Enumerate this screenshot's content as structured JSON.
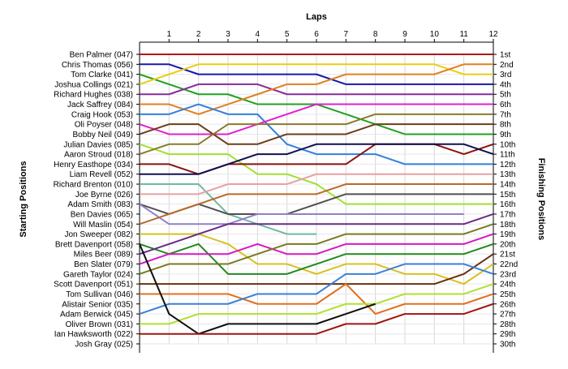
{
  "chart_data": {
    "type": "line",
    "title": "",
    "x_axis_title": "Laps",
    "left_axis_title": "Starting Positions",
    "right_axis_title": "Finishing Positions",
    "x": [
      0,
      1,
      2,
      3,
      4,
      5,
      6,
      7,
      8,
      9,
      10,
      11,
      12
    ],
    "x_tick_labels": [
      "1",
      "2",
      "3",
      "4",
      "5",
      "6",
      "7",
      "8",
      "9",
      "10",
      "11",
      "12"
    ],
    "positions": 30,
    "grid": true,
    "finishing_labels": [
      "1st",
      "2nd",
      "3rd",
      "4th",
      "5th",
      "6th",
      "7th",
      "8th",
      "9th",
      "10th",
      "11th",
      "12th",
      "13th",
      "14th",
      "15th",
      "16th",
      "17th",
      "18th",
      "19th",
      "20th",
      "21st",
      "22nd",
      "23rd",
      "24th",
      "25th",
      "26th",
      "27th",
      "28th",
      "29th",
      "30th"
    ],
    "series": [
      {
        "name": "Ben Palmer (047)",
        "color": "#b01818",
        "positions": [
          1,
          1,
          1,
          1,
          1,
          1,
          1,
          1,
          1,
          1,
          1,
          1,
          1
        ]
      },
      {
        "name": "Chris Thomas (056)",
        "color": "#1818b0",
        "positions": [
          2,
          2,
          3,
          3,
          3,
          3,
          3,
          4,
          4,
          4,
          4,
          4,
          4
        ]
      },
      {
        "name": "Tom Clarke (041)",
        "color": "#22a022",
        "positions": [
          3,
          4,
          5,
          5,
          6,
          6,
          6,
          7,
          8,
          9,
          9,
          9,
          9
        ]
      },
      {
        "name": "Joshua Collings (021)",
        "color": "#e8d010",
        "positions": [
          4,
          3,
          2,
          2,
          2,
          2,
          2,
          2,
          2,
          2,
          2,
          3,
          3
        ]
      },
      {
        "name": "Richard Hughes (038)",
        "color": "#8a2a9a",
        "positions": [
          5,
          5,
          4,
          4,
          4,
          5,
          5,
          5,
          5,
          5,
          5,
          5,
          5
        ]
      },
      {
        "name": "Jack Saffrey (084)",
        "color": "#e08020",
        "positions": [
          6,
          6,
          7,
          6,
          5,
          4,
          4,
          3,
          3,
          3,
          3,
          2,
          2
        ]
      },
      {
        "name": "Craig Hook (053)",
        "color": "#3080e0",
        "positions": [
          7,
          7,
          6,
          7,
          7,
          10,
          11,
          11,
          11,
          12,
          12,
          12,
          12
        ]
      },
      {
        "name": "Oli Poyser (048)",
        "color": "#e020d0",
        "positions": [
          8,
          9,
          9,
          9,
          8,
          7,
          6,
          6,
          6,
          6,
          6,
          6,
          6
        ]
      },
      {
        "name": "Bobby Neil (049)",
        "color": "#6b3d1a",
        "positions": [
          9,
          8,
          8,
          10,
          10,
          9,
          9,
          9,
          8,
          8,
          8,
          8,
          8
        ]
      },
      {
        "name": "Julian Davies (085)",
        "color": "#a0e030",
        "positions": [
          10,
          11,
          11,
          11,
          13,
          13,
          14,
          16,
          16,
          16,
          16,
          16,
          16
        ]
      },
      {
        "name": "Aaron Stroud (018)",
        "color": "#8a7a2a",
        "positions": [
          11,
          10,
          10,
          8,
          8,
          8,
          8,
          8,
          7,
          7,
          7,
          7,
          7
        ]
      },
      {
        "name": "Henry Easthope (034)",
        "color": "#8c1010",
        "positions": [
          12,
          12,
          13,
          12,
          12,
          12,
          12,
          12,
          10,
          10,
          10,
          11,
          10
        ]
      },
      {
        "name": "Liam Revell (052)",
        "color": "#101050",
        "positions": [
          13,
          13,
          13,
          12,
          11,
          11,
          10,
          10,
          10,
          10,
          10,
          10,
          11
        ]
      },
      {
        "name": "Richard Brenton (010)",
        "color": "#6fb8a0",
        "positions": [
          14,
          14,
          14,
          17,
          18,
          19,
          19
        ]
      },
      {
        "name": "Joe Byrne (026)",
        "color": "#e8a0a0",
        "positions": [
          15,
          15,
          15,
          14,
          14,
          14,
          13,
          13,
          13,
          13,
          13,
          13,
          13
        ]
      },
      {
        "name": "Adam Smith (083)",
        "color": "#505050",
        "positions": [
          16,
          17,
          16,
          17,
          17,
          17,
          16,
          15,
          15,
          15,
          15,
          15,
          15
        ]
      },
      {
        "name": "Ben Davies (065)",
        "color": "#9080c8",
        "positions": [
          16,
          18,
          18,
          18,
          17,
          17,
          17,
          17,
          17,
          17,
          17,
          17
        ]
      },
      {
        "name": "Will Maslin (054)",
        "color": "#b86a2a",
        "positions": [
          18,
          17,
          16,
          15,
          15,
          15,
          15,
          14,
          14,
          14,
          14,
          14,
          14
        ]
      },
      {
        "name": "Jon Sweeper (082)",
        "color": "#d8c020",
        "positions": [
          19,
          19,
          19,
          20,
          22,
          22,
          23,
          22,
          22,
          23,
          23,
          24,
          22
        ]
      },
      {
        "name": "Brett Davenport (058)",
        "color": "#208a20",
        "positions": [
          20,
          21,
          20,
          23,
          23,
          23,
          22,
          21,
          21,
          21,
          21,
          21,
          20
        ]
      },
      {
        "name": "Miles Beer (089)",
        "color": "#6a2a8a",
        "positions": [
          21,
          20,
          19,
          18,
          18,
          18,
          18,
          18,
          18,
          18,
          18,
          18,
          17
        ]
      },
      {
        "name": "Ben Slater (079)",
        "color": "#d818c0",
        "positions": [
          22,
          21,
          21,
          21,
          20,
          21,
          21,
          20,
          20,
          20,
          20,
          20,
          19
        ]
      },
      {
        "name": "Gareth Taylor (024)",
        "color": "#7a7a20",
        "positions": [
          23,
          22,
          22,
          22,
          21,
          20,
          20,
          19,
          19,
          19,
          19,
          19,
          18
        ]
      },
      {
        "name": "Scott Davenport (051)",
        "color": "#6a3010",
        "positions": [
          24,
          24,
          24,
          24,
          24,
          24,
          24,
          24,
          24,
          24,
          24,
          23,
          21
        ]
      },
      {
        "name": "Tom Sullivan (046)",
        "color": "#e07020",
        "positions": [
          25,
          25,
          25,
          25,
          26,
          26,
          26,
          24,
          27,
          26,
          26,
          26,
          25
        ]
      },
      {
        "name": "Alistair Senior (035)",
        "color": "#3a80d8",
        "positions": [
          27,
          26,
          26,
          26,
          25,
          25,
          25,
          23,
          23,
          22,
          22,
          22,
          23
        ]
      },
      {
        "name": "Adam Berwick (045)",
        "color": "#b0e030",
        "positions": [
          28,
          28,
          27,
          27,
          27,
          27,
          27,
          26,
          26,
          25,
          25,
          25,
          24
        ]
      },
      {
        "name": "Oliver Brown (031)",
        "color": "#101010",
        "positions": [
          20,
          27,
          29,
          28,
          28,
          28,
          28,
          27,
          26
        ]
      },
      {
        "name": "Ian Hawksworth (022)",
        "color": "#a01414",
        "positions": [
          29,
          29,
          29,
          29,
          29,
          29,
          29,
          28,
          28,
          27,
          27,
          27,
          26
        ]
      },
      {
        "name": "Josh Gray (025)",
        "color": "#ffffff",
        "positions": []
      }
    ]
  }
}
